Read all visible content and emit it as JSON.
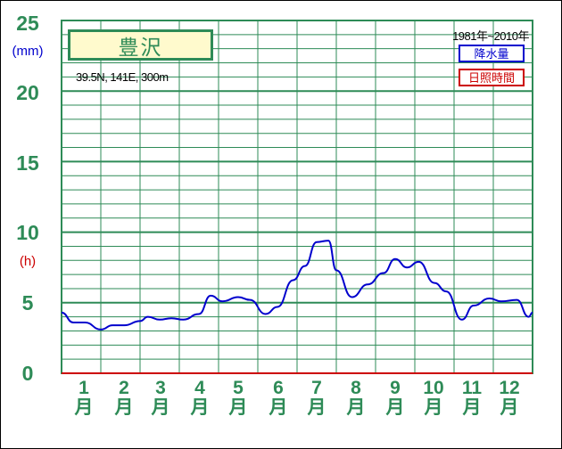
{
  "chart_data": {
    "type": "line",
    "station": "豊沢",
    "coordinates": "39.5N,  141E,  300m",
    "period": "1981年~2010年",
    "y_unit_precip": "(mm)",
    "y_unit_sunshine": "(h)",
    "ylim": [
      0,
      25
    ],
    "yticks": [
      "0",
      "5",
      "10",
      "15",
      "20",
      "25"
    ],
    "categories": [
      {
        "num": "1",
        "suffix": "月"
      },
      {
        "num": "2",
        "suffix": "月"
      },
      {
        "num": "3",
        "suffix": "月"
      },
      {
        "num": "4",
        "suffix": "月"
      },
      {
        "num": "5",
        "suffix": "月"
      },
      {
        "num": "6",
        "suffix": "月"
      },
      {
        "num": "7",
        "suffix": "月"
      },
      {
        "num": "8",
        "suffix": "月"
      },
      {
        "num": "9",
        "suffix": "月"
      },
      {
        "num": "10",
        "suffix": "月"
      },
      {
        "num": "11",
        "suffix": "月"
      },
      {
        "num": "12",
        "suffix": "月"
      }
    ],
    "legend": [
      {
        "label": "降水量",
        "color": "#0000cd"
      },
      {
        "label": "日照時間",
        "color": "#cc0000"
      }
    ],
    "series": [
      {
        "name": "降水量",
        "color": "#0000cd",
        "x": [
          0,
          0.3,
          0.6,
          1.0,
          1.3,
          1.6,
          2.0,
          2.2,
          2.5,
          2.8,
          3.1,
          3.5,
          3.8,
          4.1,
          4.5,
          4.8,
          5.2,
          5.5,
          5.9,
          6.2,
          6.5,
          6.8,
          7.0,
          7.4,
          7.8,
          8.2,
          8.5,
          8.8,
          9.1,
          9.5,
          9.8,
          10.2,
          10.5,
          10.9,
          11.2,
          11.6,
          11.9,
          12.0
        ],
        "y": [
          4.3,
          3.6,
          3.6,
          3.1,
          3.4,
          3.4,
          3.7,
          4.0,
          3.8,
          3.9,
          3.8,
          4.2,
          5.5,
          5.1,
          5.4,
          5.2,
          4.2,
          4.7,
          6.6,
          7.6,
          9.3,
          9.4,
          7.3,
          5.4,
          6.3,
          7.1,
          8.1,
          7.5,
          7.9,
          6.4,
          5.8,
          3.8,
          4.8,
          5.3,
          5.1,
          5.2,
          4.0,
          4.3
        ]
      },
      {
        "name": "日照時間",
        "color": "#cc0000",
        "x": [
          0,
          12
        ],
        "y": [
          0,
          0
        ]
      }
    ]
  }
}
